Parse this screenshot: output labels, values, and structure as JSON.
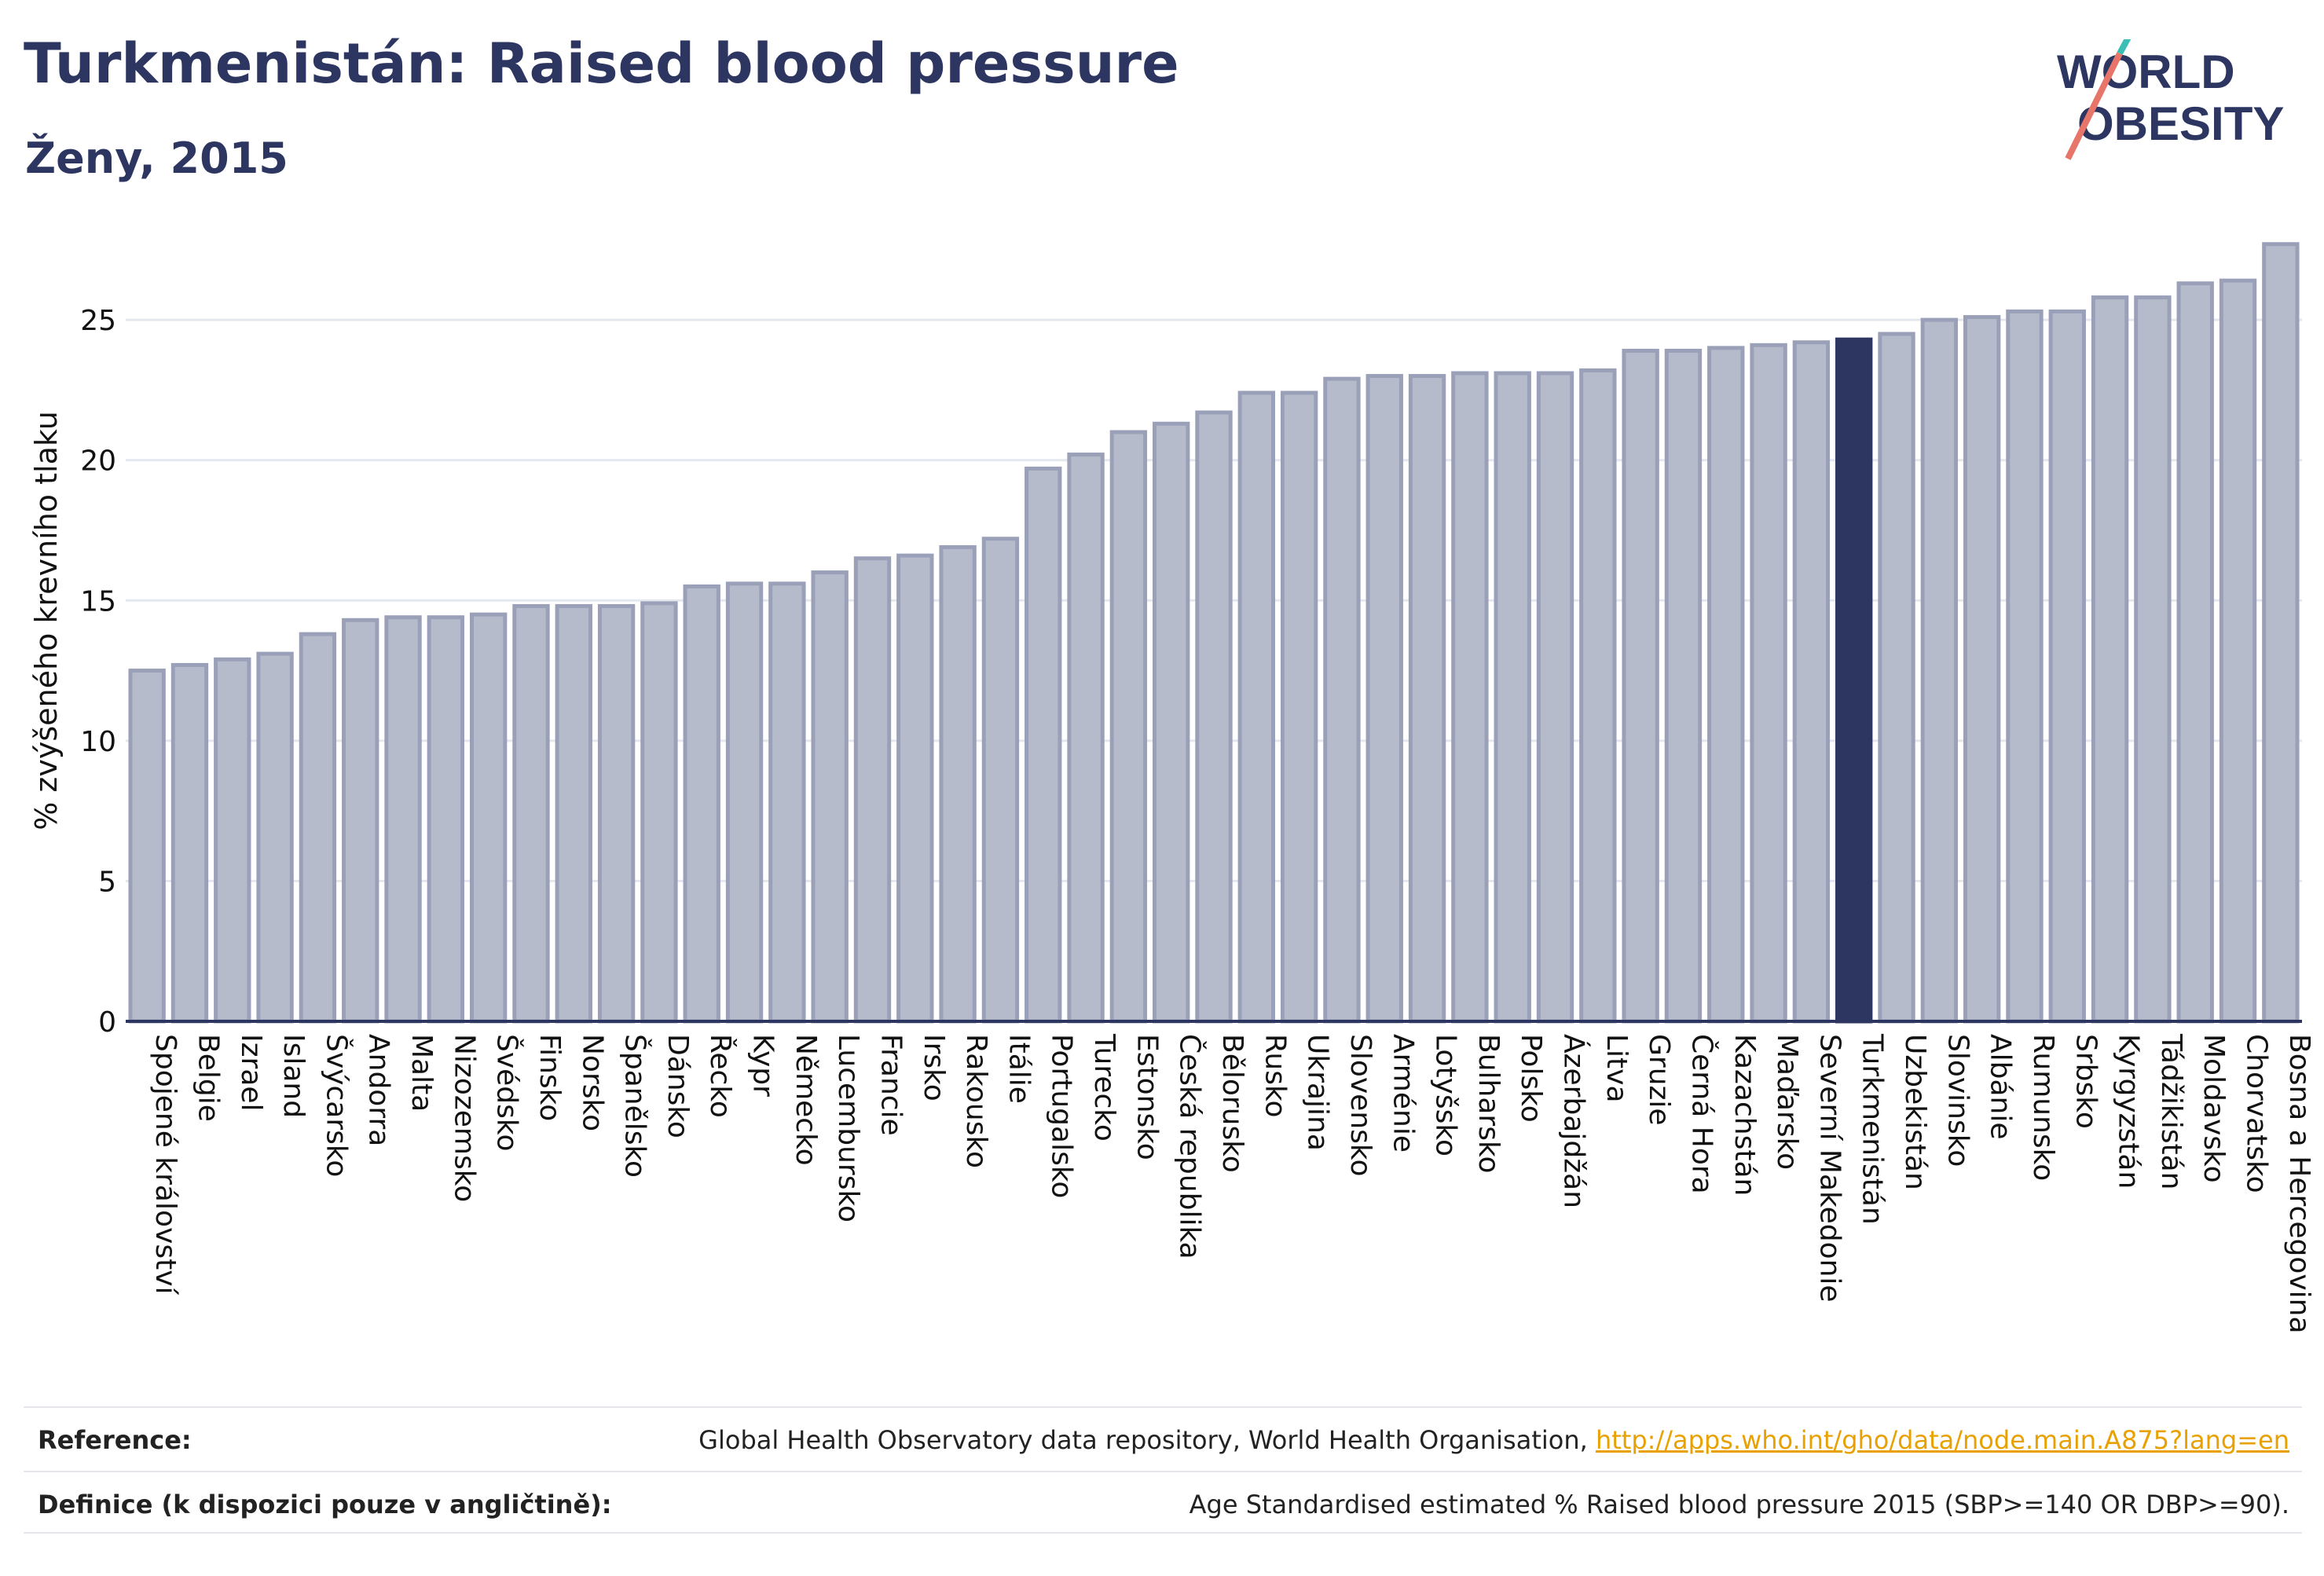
{
  "header": {
    "title": "Turkmenistán: Raised blood pressure",
    "subtitle": "Ženy, 2015",
    "logo_text_line1": "WORLD",
    "logo_text_line2": "OBESITY"
  },
  "colors": {
    "bar": "#b6bbcc",
    "bar_stroke": "#9aa0b8",
    "highlight": "#2d3561",
    "axis": "#2d3561",
    "grid": "#e5e7ee",
    "logo_accent": "#e8756a",
    "logo_accent2": "#3bbfb4",
    "link": "#e8a100"
  },
  "chart_data": {
    "type": "bar",
    "ylabel": "% zvýšeného krevního tlaku",
    "ylim": [
      0,
      28
    ],
    "yticks": [
      0,
      5,
      10,
      15,
      20,
      25
    ],
    "highlight": "Turkmenistán",
    "grid": true,
    "categories": [
      "Spojené království",
      "Belgie",
      "Izrael",
      "Island",
      "Švýcarsko",
      "Andorra",
      "Malta",
      "Nizozemsko",
      "Švédsko",
      "Finsko",
      "Norsko",
      "Španělsko",
      "Dánsko",
      "Řecko",
      "Kypr",
      "Německo",
      "Lucembursko",
      "Francie",
      "Irsko",
      "Rakousko",
      "Itálie",
      "Portugalsko",
      "Turecko",
      "Estonsko",
      "Česká republika",
      "Bělorusko",
      "Rusko",
      "Ukrajina",
      "Slovensko",
      "Arménie",
      "Lotyšsko",
      "Bulharsko",
      "Polsko",
      "Ázerbajdžán",
      "Litva",
      "Gruzie",
      "Černá Hora",
      "Kazachstán",
      "Maďarsko",
      "Severní Makedonie",
      "Turkmenistán",
      "Uzbekistán",
      "Slovinsko",
      "Albánie",
      "Rumunsko",
      "Srbsko",
      "Kyrgyzstán",
      "Tádžikistán",
      "Moldavsko",
      "Chorvatsko",
      "Bosna a Hercegovina"
    ],
    "values": [
      12.5,
      12.7,
      12.9,
      13.1,
      13.8,
      14.3,
      14.4,
      14.4,
      14.5,
      14.8,
      14.8,
      14.8,
      14.9,
      15.5,
      15.6,
      15.6,
      16.0,
      16.5,
      16.6,
      16.9,
      17.2,
      19.7,
      20.2,
      21.0,
      21.3,
      21.7,
      22.4,
      22.4,
      22.9,
      23.0,
      23.0,
      23.1,
      23.1,
      23.1,
      23.2,
      23.9,
      23.9,
      24.0,
      24.1,
      24.2,
      24.3,
      24.5,
      25.0,
      25.1,
      25.3,
      25.3,
      25.8,
      25.8,
      26.3,
      26.4,
      27.7
    ]
  },
  "footer": {
    "reference_label": "Reference:",
    "reference_text": "Global Health Observatory data repository, World Health Organisation,",
    "reference_link": "http://apps.who.int/gho/data/node.main.A875?lang=en",
    "definition_label": "Definice (k dispozici pouze v angličtině):",
    "definition_text": "Age Standardised estimated % Raised blood pressure 2015 (SBP>=140 OR DBP>=90)."
  }
}
